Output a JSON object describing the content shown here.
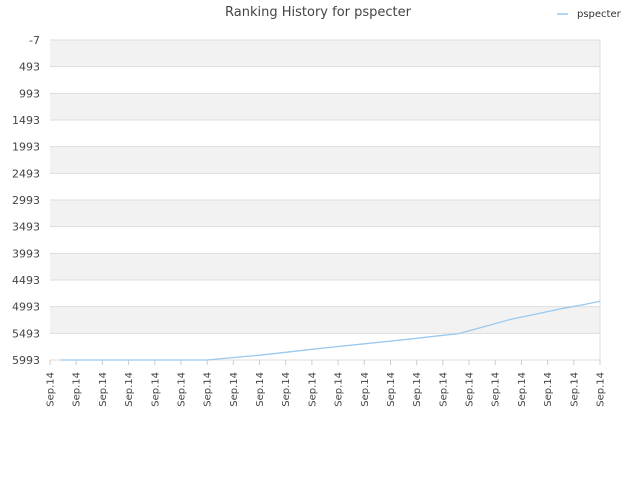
{
  "chart_data": {
    "type": "line",
    "title": "Ranking History for pspecter",
    "xlabel": "",
    "ylabel": "",
    "y_inverted": true,
    "ylim": [
      -7,
      5993
    ],
    "y_ticks": [
      "-7",
      "493",
      "993",
      "1493",
      "1993",
      "2493",
      "2993",
      "3493",
      "3993",
      "4493",
      "4993",
      "5493",
      "5993"
    ],
    "x_ticks": [
      "Sep.14",
      "Sep.14",
      "Sep.14",
      "Sep.14",
      "Sep.14",
      "Sep.14",
      "Sep.14",
      "Sep.14",
      "Sep.14",
      "Sep.14",
      "Sep.14",
      "Sep.14",
      "Sep.14",
      "Sep.14",
      "Sep.14",
      "Sep.14",
      "Sep.14",
      "Sep.14",
      "Sep.14",
      "Sep.14",
      "Sep.14",
      "Sep.14"
    ],
    "grid": true,
    "legend_position": "top-right",
    "series": [
      {
        "name": "pspecter",
        "color": "#99c9f0",
        "x_index": [
          0.4,
          6.0,
          6.8,
          8.0,
          9.0,
          10.0,
          11.0,
          12.0,
          13.0,
          14.0,
          15.0,
          15.6,
          16.6,
          17.6,
          18.6,
          19.6,
          20.4,
          21.0
        ],
        "values": [
          5993,
          5993,
          5955,
          5903,
          5848,
          5793,
          5740,
          5689,
          5638,
          5587,
          5530,
          5498,
          5365,
          5228,
          5128,
          5023,
          4953,
          4893
        ]
      }
    ]
  }
}
